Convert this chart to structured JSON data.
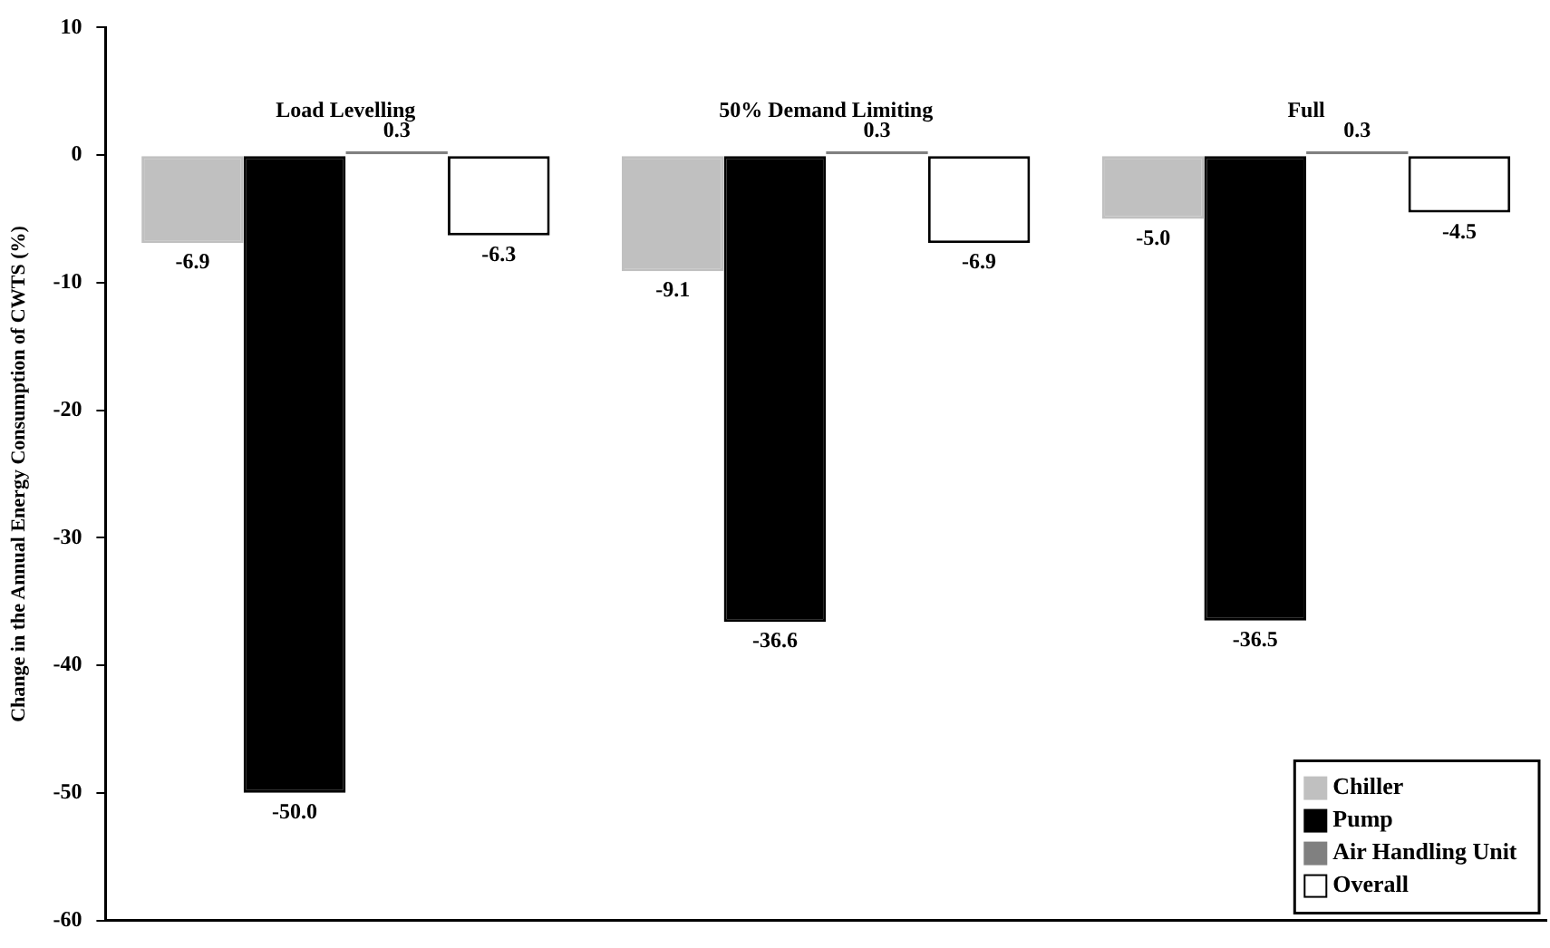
{
  "chart_data": {
    "type": "bar",
    "ylabel": "Change in the Annual Energy Consumption of CWTS (%)",
    "categories": [
      "Load Levelling",
      "50% Demand Limiting",
      "Full"
    ],
    "series": [
      {
        "name": "Chiller",
        "color": "#c0c0c0",
        "values": [
          -6.9,
          -9.1,
          -5.0
        ],
        "value_labels": [
          "-6.9",
          "-9.1",
          "-5.0"
        ]
      },
      {
        "name": "Pump",
        "color": "#000000",
        "values": [
          -50.0,
          -36.6,
          -36.5
        ],
        "value_labels": [
          "-50.0",
          "-36.6",
          "-36.5"
        ]
      },
      {
        "name": "Air Handling Unit",
        "color": "#808080",
        "values": [
          0.3,
          0.3,
          0.3
        ],
        "value_labels": [
          "0.3",
          "0.3",
          "0.3"
        ]
      },
      {
        "name": "Overall",
        "color": "#ffffff",
        "values": [
          -6.3,
          -6.9,
          -4.5
        ],
        "value_labels": [
          "-6.3",
          "-6.9",
          "-4.5"
        ]
      }
    ],
    "ylim": [
      -60,
      10
    ],
    "yticks": [
      -60,
      -50,
      -40,
      -30,
      -20,
      -10,
      0,
      10
    ],
    "grid": false,
    "legend": "bottom right"
  }
}
